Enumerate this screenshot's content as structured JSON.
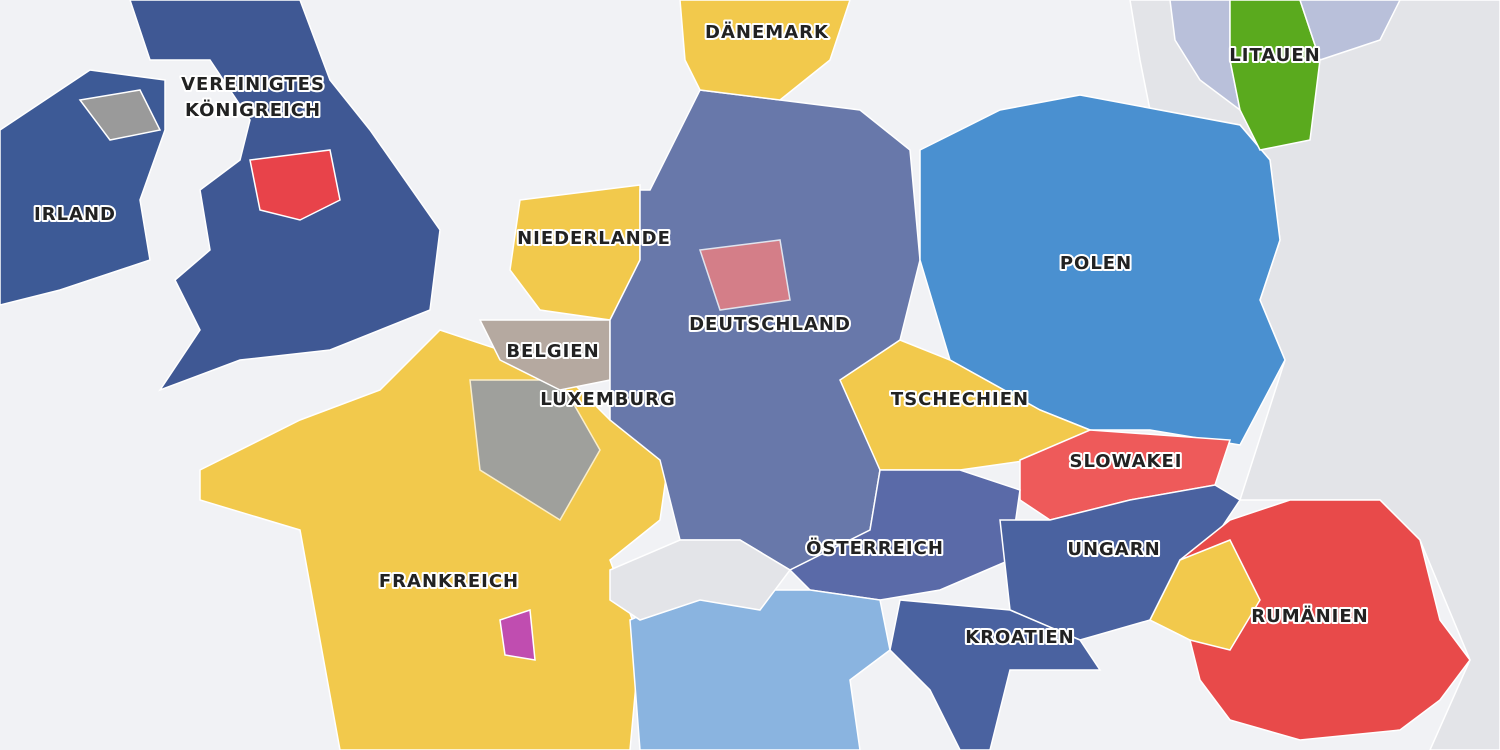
{
  "labels": [
    "DÄNEMARK",
    "LITAUEN",
    [
      "VEREINIGTES",
      "KÖNIGREICH"
    ],
    "IRLAND",
    "NIEDERLANDE",
    "POLEN",
    "DEUTSCHLAND",
    "BELGIEN",
    "LUXEMBURG",
    "TSCHECHIEN",
    "SLOWAKEI",
    "ÖSTERREICH",
    "UNGARN",
    "FRANKREICH",
    "RUMÄNIEN",
    "KROATIEN"
  ]
}
